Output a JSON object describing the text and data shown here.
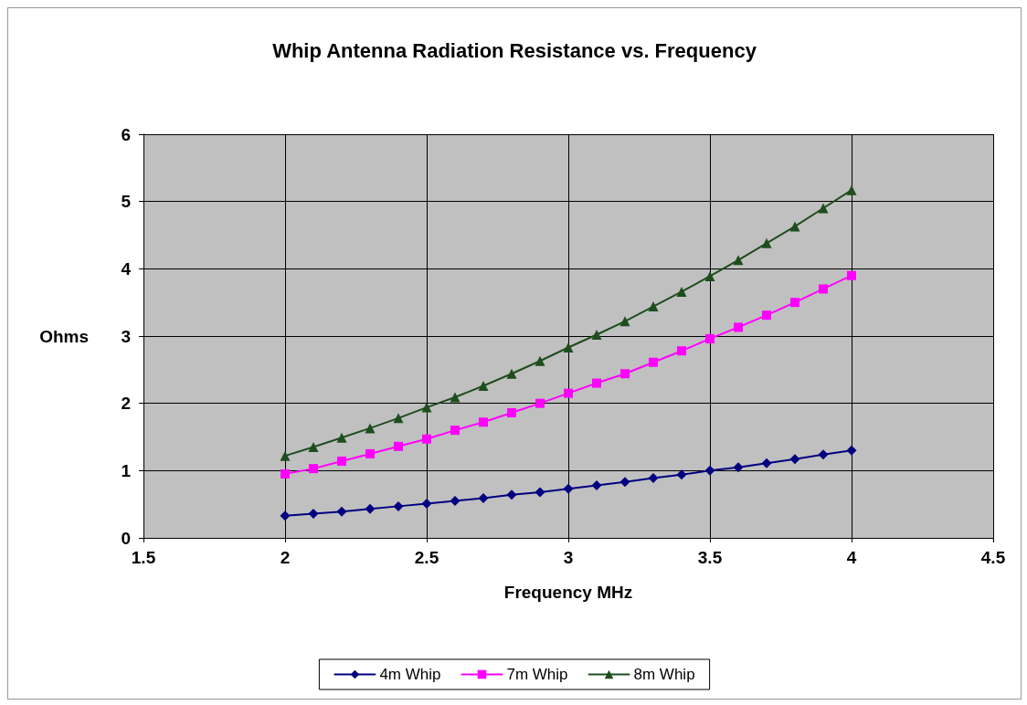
{
  "chart_data": {
    "type": "line",
    "title": "Whip Antenna Radiation Resistance vs. Frequency",
    "xlabel": "Frequency MHz",
    "ylabel": "Ohms",
    "x": [
      2,
      2.1,
      2.2,
      2.3,
      2.4,
      2.5,
      2.6,
      2.7,
      2.8,
      2.9,
      3,
      3.1,
      3.2,
      3.3,
      3.4,
      3.5,
      3.6,
      3.7,
      3.8,
      3.9,
      4
    ],
    "series": [
      {
        "name": "4m Whip",
        "color": "#000080",
        "marker": "diamond",
        "values": [
          0.33,
          0.36,
          0.39,
          0.43,
          0.47,
          0.51,
          0.55,
          0.59,
          0.64,
          0.68,
          0.73,
          0.78,
          0.83,
          0.89,
          0.94,
          1.0,
          1.05,
          1.11,
          1.17,
          1.24,
          1.3
        ]
      },
      {
        "name": "7m Whip",
        "color": "#ff00ff",
        "marker": "square",
        "values": [
          0.95,
          1.03,
          1.14,
          1.25,
          1.36,
          1.47,
          1.6,
          1.72,
          1.86,
          2.0,
          2.15,
          2.3,
          2.44,
          2.61,
          2.78,
          2.96,
          3.13,
          3.31,
          3.5,
          3.7,
          3.9
        ]
      },
      {
        "name": "8m Whip",
        "color": "#1e4d1e",
        "marker": "triangle",
        "values": [
          1.22,
          1.35,
          1.49,
          1.63,
          1.78,
          1.94,
          2.09,
          2.26,
          2.44,
          2.63,
          2.83,
          3.02,
          3.22,
          3.44,
          3.66,
          3.89,
          4.13,
          4.38,
          4.63,
          4.9,
          5.17
        ]
      }
    ],
    "xlim": [
      1.5,
      4.5
    ],
    "xticks": [
      1.5,
      2,
      2.5,
      3,
      3.5,
      4,
      4.5
    ],
    "ylim": [
      0,
      6
    ],
    "yticks": [
      0,
      1,
      2,
      3,
      4,
      5,
      6
    ],
    "grid": true,
    "legend": "bottom",
    "line_style": "solid"
  }
}
